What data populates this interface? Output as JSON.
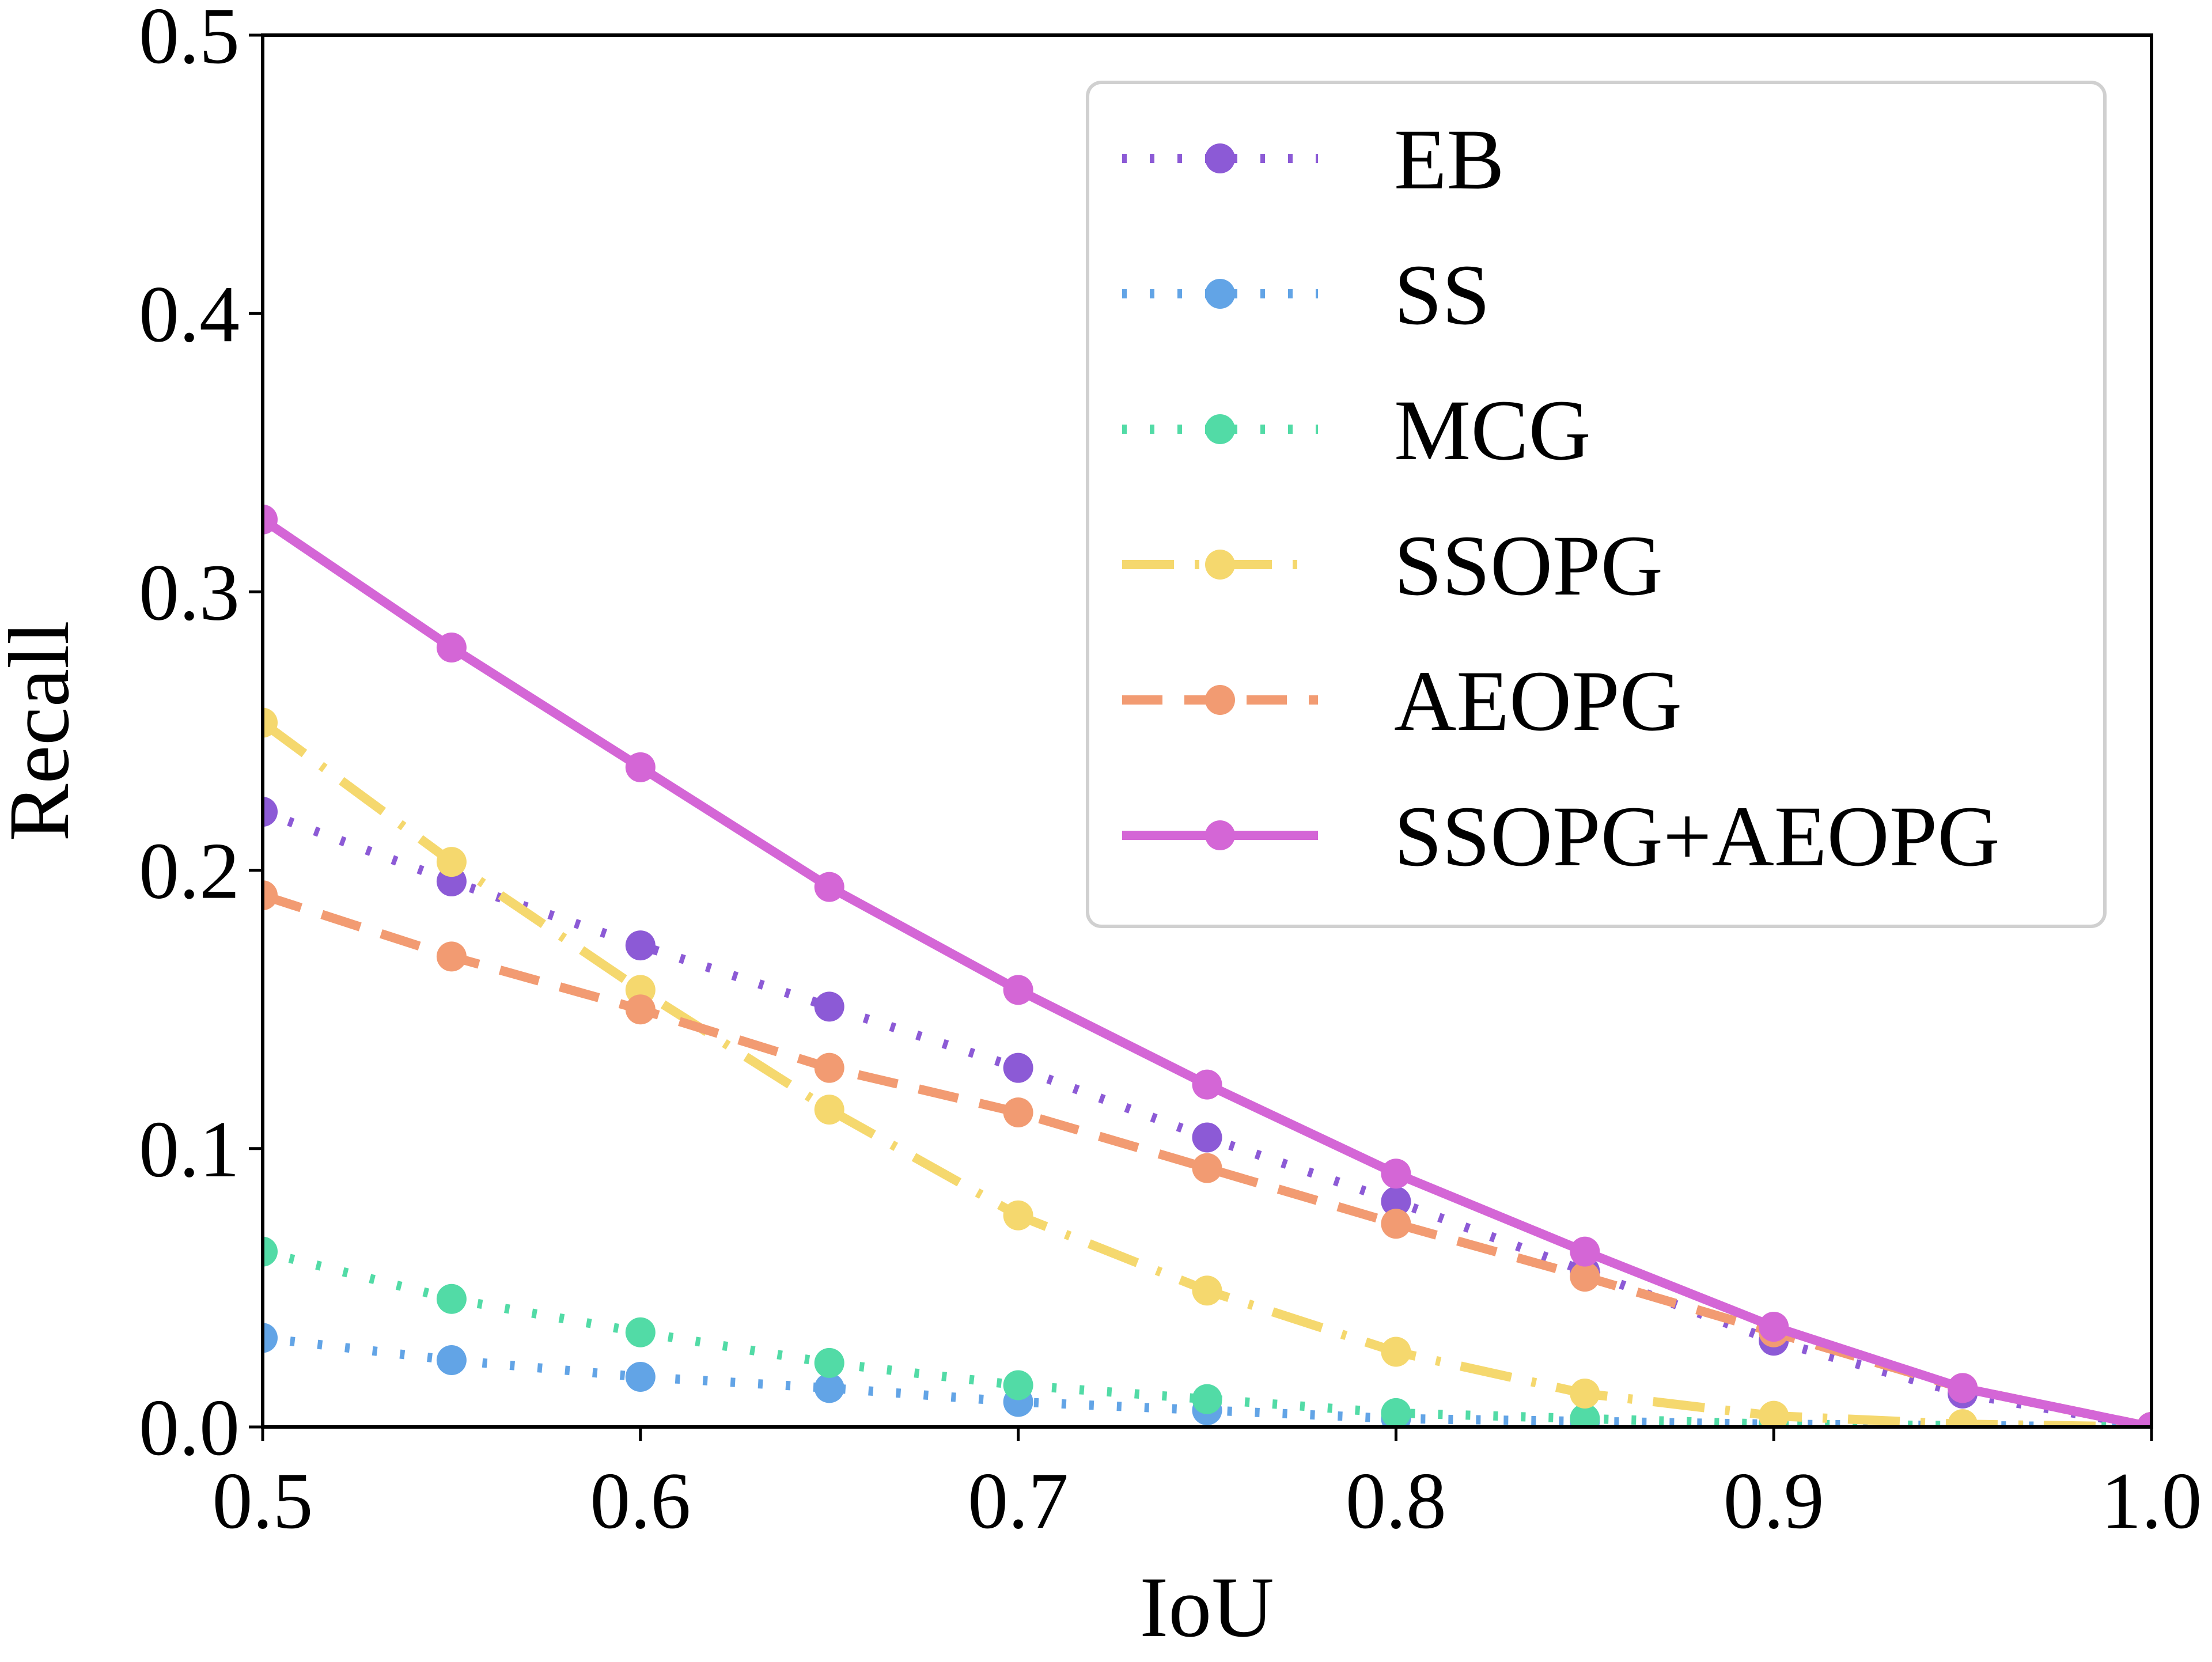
{
  "chart_data": {
    "type": "line",
    "title": "",
    "xlabel": "IoU",
    "ylabel": "Recall",
    "xlim": [
      0.5,
      1.0
    ],
    "ylim": [
      0.0,
      0.5
    ],
    "xticks": [
      0.5,
      0.6,
      0.7,
      0.8,
      0.9,
      1.0
    ],
    "xtick_labels": [
      "0.5",
      "0.6",
      "0.7",
      "0.8",
      "0.9",
      "1.0"
    ],
    "yticks": [
      0.0,
      0.1,
      0.2,
      0.3,
      0.4,
      0.5
    ],
    "ytick_labels": [
      "0.0",
      "0.1",
      "0.2",
      "0.3",
      "0.4",
      "0.5"
    ],
    "grid": false,
    "legend_position": "top-right",
    "x": [
      0.5,
      0.55,
      0.6,
      0.65,
      0.7,
      0.75,
      0.8,
      0.85,
      0.9,
      0.95,
      1.0
    ],
    "series": [
      {
        "name": "EB",
        "color": "#8c5ad6",
        "style": "dotted",
        "values": [
          0.221,
          0.196,
          0.173,
          0.151,
          0.129,
          0.104,
          0.081,
          0.056,
          0.031,
          0.012,
          0.0
        ]
      },
      {
        "name": "SS",
        "color": "#62a4e6",
        "style": "dotted",
        "values": [
          0.032,
          0.024,
          0.018,
          0.014,
          0.009,
          0.006,
          0.003,
          0.002,
          0.001,
          0.0005,
          0.0
        ]
      },
      {
        "name": "MCG",
        "color": "#52dba6",
        "style": "dotted",
        "values": [
          0.063,
          0.046,
          0.034,
          0.023,
          0.015,
          0.01,
          0.005,
          0.003,
          0.001,
          0.0005,
          0.0
        ]
      },
      {
        "name": "SSOPG",
        "color": "#f5d86e",
        "style": "dashdot",
        "values": [
          0.253,
          0.203,
          0.157,
          0.114,
          0.076,
          0.049,
          0.027,
          0.012,
          0.004,
          0.001,
          0.0
        ]
      },
      {
        "name": "AEOPG",
        "color": "#f29b72",
        "style": "dashed",
        "values": [
          0.191,
          0.169,
          0.15,
          0.129,
          0.113,
          0.093,
          0.073,
          0.054,
          0.034,
          0.014,
          0.0
        ]
      },
      {
        "name": "SSOPG+AEOPG",
        "color": "#d466d6",
        "style": "solid",
        "values": [
          0.326,
          0.28,
          0.237,
          0.194,
          0.157,
          0.123,
          0.091,
          0.063,
          0.036,
          0.014,
          0.0
        ]
      }
    ]
  }
}
